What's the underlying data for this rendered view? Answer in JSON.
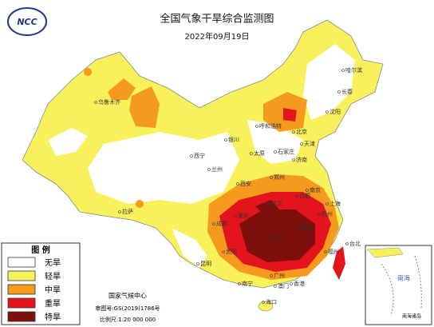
{
  "header": {
    "title": "全国气象干旱综合监测图",
    "date": "2022年09月19日",
    "logo": "NCC"
  },
  "legend": {
    "title": "图 例",
    "items": [
      {
        "label": "无旱",
        "color": "#ffffff"
      },
      {
        "label": "轻旱",
        "color": "#f9f15b"
      },
      {
        "label": "中旱",
        "color": "#f59a1d"
      },
      {
        "label": "重旱",
        "color": "#e3141b"
      },
      {
        "label": "特旱",
        "color": "#7d0f0c"
      }
    ]
  },
  "credits": {
    "agency": "国家气候中心",
    "approval": "审图号:GS(2019)1786号",
    "scale": "比例尺:1:20 000 000"
  },
  "inset": {
    "label": "南海",
    "caption": "南海诸岛"
  },
  "cities": [
    "乌鲁木齐",
    "拉萨",
    "西宁",
    "兰州",
    "银川",
    "呼和浩特",
    "北京",
    "天津",
    "石家庄",
    "太原",
    "济南",
    "郑州",
    "西安",
    "成都",
    "重庆",
    "武汉",
    "长沙",
    "南昌",
    "合肥",
    "南京",
    "上海",
    "杭州",
    "福州",
    "台北",
    "广州",
    "南宁",
    "海口",
    "昆明",
    "贵阳",
    "哈尔滨",
    "长春",
    "沈阳",
    "香港",
    "澳门"
  ]
}
